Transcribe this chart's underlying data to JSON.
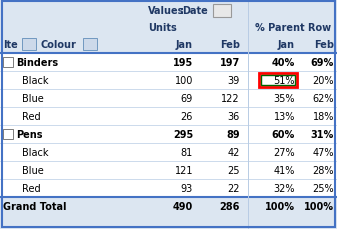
{
  "header_bg": "#dce6f1",
  "row_bg_white": "#ffffff",
  "border_color": "#4472c4",
  "thin_line": "#b8cce4",
  "text_dark": "#1f3864",
  "text_black": "#000000",
  "highlight_red": "#ff0000",
  "highlight_green": "#006400",
  "rows": [
    {
      "label": "Binders",
      "jan": "195",
      "feb": "197",
      "pct_jan": "40%",
      "pct_feb": "69%",
      "bold": true,
      "group": true,
      "highlight": false
    },
    {
      "label": "Black",
      "jan": "100",
      "feb": "39",
      "pct_jan": "51%",
      "pct_feb": "20%",
      "bold": false,
      "group": false,
      "highlight": true
    },
    {
      "label": "Blue",
      "jan": "69",
      "feb": "122",
      "pct_jan": "35%",
      "pct_feb": "62%",
      "bold": false,
      "group": false,
      "highlight": false
    },
    {
      "label": "Red",
      "jan": "26",
      "feb": "36",
      "pct_jan": "13%",
      "pct_feb": "18%",
      "bold": false,
      "group": false,
      "highlight": false
    },
    {
      "label": "Pens",
      "jan": "295",
      "feb": "89",
      "pct_jan": "60%",
      "pct_feb": "31%",
      "bold": true,
      "group": true,
      "highlight": false
    },
    {
      "label": "Black",
      "jan": "81",
      "feb": "42",
      "pct_jan": "27%",
      "pct_feb": "47%",
      "bold": false,
      "group": false,
      "highlight": false
    },
    {
      "label": "Blue",
      "jan": "121",
      "feb": "25",
      "pct_jan": "41%",
      "pct_feb": "28%",
      "bold": false,
      "group": false,
      "highlight": false
    },
    {
      "label": "Red",
      "jan": "93",
      "feb": "22",
      "pct_jan": "32%",
      "pct_feb": "25%",
      "bold": false,
      "group": false,
      "highlight": false
    }
  ],
  "grand_total": {
    "label": "Grand Total",
    "jan": "490",
    "feb": "286",
    "pct_jan": "100%",
    "pct_feb": "100%"
  },
  "hdr1_left": "Values​Date",
  "hdr2_left": "Units",
  "hdr2_right": "% Parent Row",
  "hdr3_item": "Ite",
  "hdr3_colour": "Colour",
  "hdr3_jan": "Jan",
  "hdr3_feb": "Feb",
  "font_size": 7.0,
  "font_size_hdr": 7.0
}
